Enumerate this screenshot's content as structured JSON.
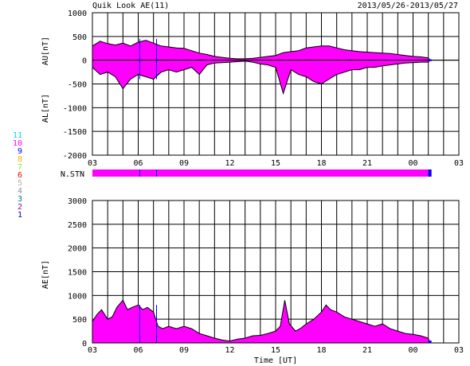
{
  "header": {
    "title": "Quik Look AE(11)",
    "date_range": "2013/05/26-2013/05/27"
  },
  "colors": {
    "fill": "#ff00ff",
    "edge": "#000000",
    "grid": "#000000",
    "marker_blue": "#0000ff"
  },
  "stations_legend": [
    {
      "label": "11",
      "color": "#00e0e0"
    },
    {
      "label": "10",
      "color": "#ff00ff"
    },
    {
      "label": "9",
      "color": "#0000ff"
    },
    {
      "label": "8",
      "color": "#ffb000"
    },
    {
      "label": "7",
      "color": "#a0e040"
    },
    {
      "label": "6",
      "color": "#ff0000"
    },
    {
      "label": "5",
      "color": "#b0b0b0"
    },
    {
      "label": "4",
      "color": "#909090"
    },
    {
      "label": "3",
      "color": "#008080"
    },
    {
      "label": "2",
      "color": "#a000a0"
    },
    {
      "label": "1",
      "color": "#0000c0"
    }
  ],
  "chart_data": [
    {
      "id": "au_al",
      "type": "area",
      "ylabel_top": "AU[nT]",
      "ylabel_bottom": "AL[nT]",
      "ylim": [
        -2000,
        1000
      ],
      "yticks": [
        1000,
        500,
        0,
        -500,
        -1000,
        -1500,
        -2000
      ],
      "x_ticks": [
        "03",
        "06",
        "09",
        "12",
        "15",
        "18",
        "21",
        "00",
        "03"
      ],
      "x_unit_hours": [
        3,
        27
      ],
      "grid": true,
      "series": [
        {
          "name": "AU",
          "x": [
            3,
            3.5,
            4,
            4.5,
            5,
            5.5,
            6,
            6.5,
            7,
            7.5,
            8,
            8.5,
            9,
            9.5,
            10,
            10.5,
            11,
            11.5,
            12,
            12.5,
            13,
            13.5,
            14,
            14.5,
            15,
            15.5,
            16,
            16.5,
            17,
            17.5,
            18,
            18.5,
            19,
            19.5,
            20,
            20.5,
            21,
            21.5,
            22,
            22.5,
            23,
            23.5,
            24,
            24.5,
            25,
            25.1
          ],
          "values": [
            300,
            400,
            350,
            320,
            360,
            300,
            380,
            420,
            360,
            300,
            280,
            260,
            250,
            200,
            150,
            120,
            80,
            60,
            40,
            30,
            30,
            40,
            60,
            80,
            100,
            160,
            180,
            200,
            260,
            280,
            300,
            300,
            260,
            220,
            200,
            180,
            170,
            160,
            150,
            140,
            120,
            100,
            80,
            70,
            50,
            0
          ]
        },
        {
          "name": "AL",
          "x": [
            3,
            3.5,
            4,
            4.5,
            5,
            5.5,
            6,
            6.5,
            7,
            7.5,
            8,
            8.5,
            9,
            9.5,
            10,
            10.5,
            11,
            11.5,
            12,
            12.5,
            13,
            13.5,
            14,
            14.5,
            15,
            15.5,
            16,
            16.5,
            17,
            17.5,
            18,
            18.5,
            19,
            19.5,
            20,
            20.5,
            21,
            21.5,
            22,
            22.5,
            23,
            23.5,
            24,
            24.5,
            25,
            25.1
          ],
          "values": [
            -150,
            -300,
            -250,
            -350,
            -600,
            -400,
            -300,
            -350,
            -400,
            -250,
            -200,
            -250,
            -200,
            -150,
            -300,
            -100,
            -60,
            -50,
            -40,
            -30,
            -20,
            -40,
            -80,
            -100,
            -150,
            -700,
            -200,
            -300,
            -350,
            -450,
            -500,
            -400,
            -300,
            -250,
            -200,
            -200,
            -150,
            -150,
            -120,
            -100,
            -80,
            -60,
            -50,
            -40,
            -40,
            0
          ]
        }
      ]
    },
    {
      "id": "nstn",
      "type": "area",
      "label": "N.STN",
      "value": 10
    },
    {
      "id": "ae",
      "type": "area",
      "ylabel": "AE[nT]",
      "xlabel": "Time [UT]",
      "ylim": [
        0,
        3000
      ],
      "yticks": [
        3000,
        2500,
        2000,
        1500,
        1000,
        500,
        0
      ],
      "x_ticks": [
        "03",
        "06",
        "09",
        "12",
        "15",
        "18",
        "21",
        "00",
        "03"
      ],
      "x_unit_hours": [
        3,
        27
      ],
      "grid": true,
      "series": [
        {
          "name": "AE",
          "x": [
            3,
            3.3,
            3.6,
            4,
            4.3,
            4.6,
            5,
            5.3,
            5.6,
            6,
            6.3,
            6.6,
            7,
            7.3,
            7.6,
            8,
            8.5,
            9,
            9.5,
            10,
            10.5,
            11,
            11.5,
            12,
            12.5,
            13,
            13.5,
            14,
            14.5,
            15,
            15.3,
            15.6,
            15.9,
            16.3,
            16.6,
            17,
            17.5,
            18,
            18.3,
            18.6,
            19,
            19.5,
            20,
            20.5,
            21,
            21.5,
            22,
            22.5,
            23,
            23.5,
            24,
            24.5,
            25,
            25.1
          ],
          "values": [
            450,
            600,
            700,
            500,
            550,
            750,
            900,
            700,
            750,
            800,
            700,
            750,
            650,
            350,
            300,
            350,
            300,
            350,
            300,
            200,
            150,
            100,
            60,
            40,
            80,
            100,
            150,
            160,
            200,
            250,
            350,
            900,
            400,
            250,
            300,
            400,
            500,
            650,
            800,
            700,
            650,
            550,
            500,
            450,
            400,
            350,
            400,
            300,
            250,
            200,
            180,
            150,
            100,
            0
          ]
        }
      ]
    }
  ]
}
